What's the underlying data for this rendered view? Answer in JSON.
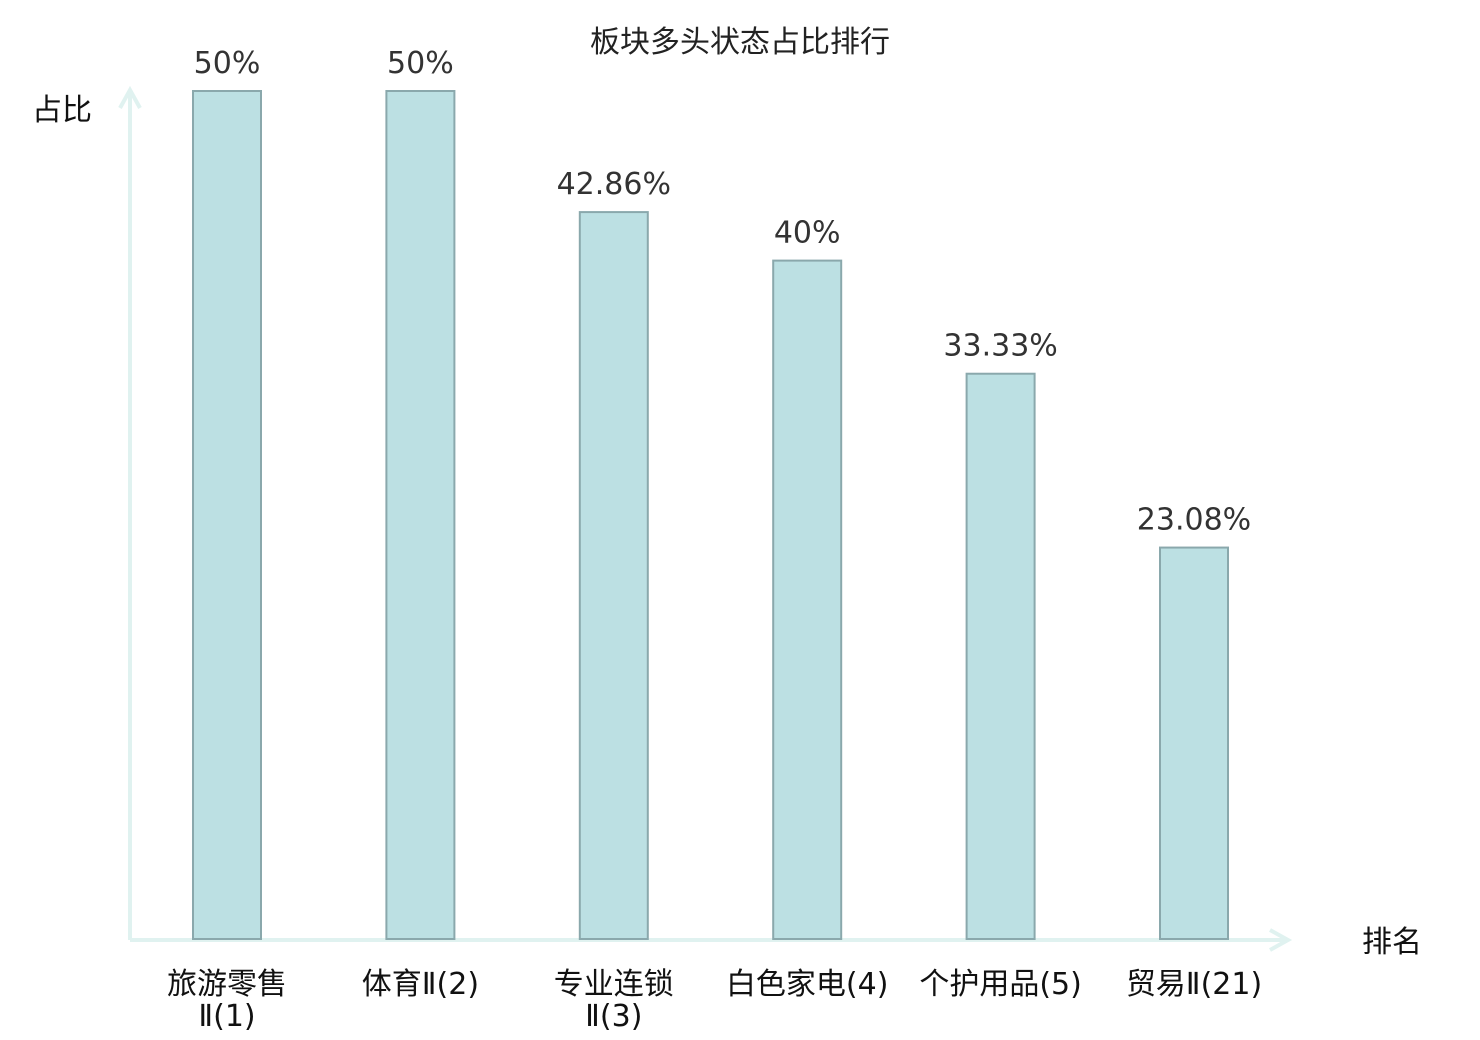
{
  "chart_data": {
    "type": "bar",
    "title": "板块多头状态占比排行",
    "ylabel": "占比",
    "xlabel": "排名",
    "ylim": [
      0,
      50
    ],
    "categories": [
      [
        "旅游零售",
        "Ⅱ(1)"
      ],
      [
        "体育Ⅱ(2)"
      ],
      [
        "专业连锁",
        "Ⅱ(3)"
      ],
      [
        "白色家电(4)"
      ],
      [
        "个护用品(5)"
      ],
      [
        "贸易Ⅱ(21)"
      ]
    ],
    "values": [
      50,
      50,
      42.86,
      40,
      33.33,
      23.08
    ],
    "value_labels": [
      "50%",
      "50%",
      "42.86%",
      "40%",
      "33.33%",
      "23.08%"
    ],
    "highlight_index": 5,
    "grid": false,
    "colors": {
      "bar_fill": "#bce0e3",
      "bar_stroke": "#8aa8ac",
      "axis": "#e0f2f0",
      "highlight_text": "#e02020",
      "text": "#111111"
    }
  }
}
